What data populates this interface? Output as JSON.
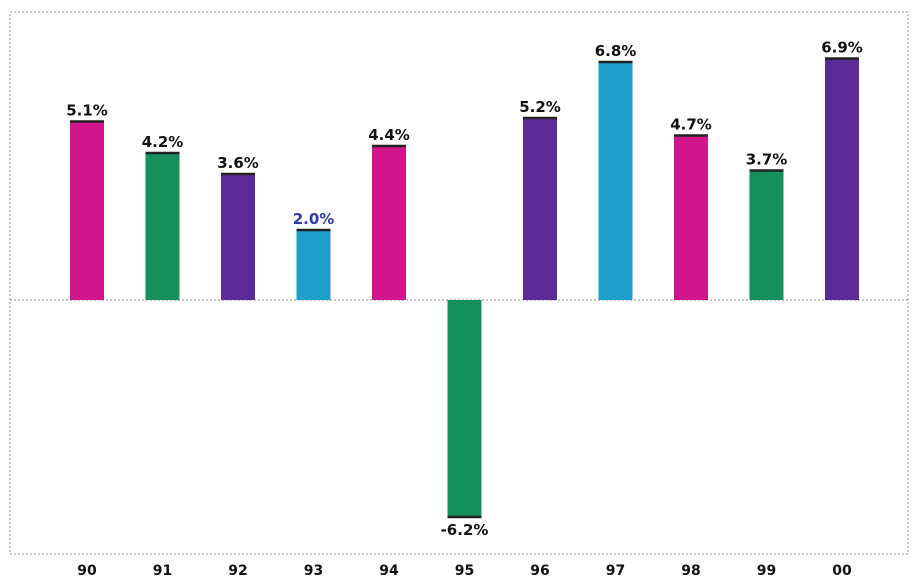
{
  "chart_data": {
    "type": "bar",
    "title": "",
    "xlabel": "",
    "ylabel": "",
    "categories": [
      "90",
      "91",
      "92",
      "93",
      "94",
      "95",
      "96",
      "97",
      "98",
      "99",
      "00"
    ],
    "values": [
      5.1,
      4.2,
      3.6,
      2.0,
      4.4,
      -6.2,
      5.2,
      6.8,
      4.7,
      3.7,
      6.9
    ],
    "value_labels": [
      "5.1%",
      "4.2%",
      "3.6%",
      "2.0%",
      "4.4%",
      "-6.2%",
      "5.2%",
      "6.8%",
      "4.7%",
      "3.7%",
      "6.9%"
    ],
    "bar_colors": [
      "#d0168a",
      "#16905a",
      "#5b2a96",
      "#1fa0cc",
      "#d0168a",
      "#16905a",
      "#5b2a96",
      "#1fa0cc",
      "#d0168a",
      "#16905a",
      "#5b2a96"
    ],
    "label_colors": [
      "#111111",
      "#111111",
      "#111111",
      "#2f3aa8",
      "#111111",
      "#111111",
      "#111111",
      "#111111",
      "#111111",
      "#111111",
      "#111111"
    ],
    "ylim": [
      -7.3,
      8.5
    ],
    "grid": false,
    "legend": "none"
  }
}
